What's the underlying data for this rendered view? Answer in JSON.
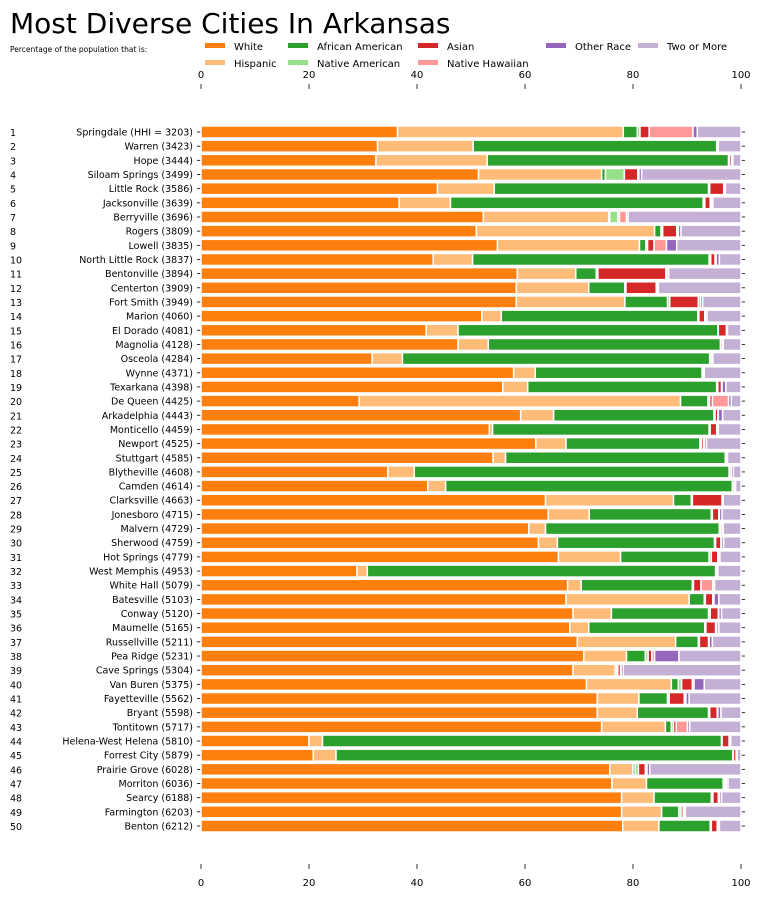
{
  "chart_data": {
    "type": "bar",
    "orientation": "horizontal",
    "stacked": true,
    "title": "Most Diverse Cities In Arkansas",
    "subtitle": "Percentage of the population that is:",
    "xlim": [
      0,
      100
    ],
    "xticks": [
      0,
      20,
      40,
      60,
      80,
      100
    ],
    "grid": false,
    "legend_placement": "top",
    "series": [
      {
        "name": "White",
        "color": "#ff7f0e"
      },
      {
        "name": "Hispanic",
        "color": "#ffbb78"
      },
      {
        "name": "African American",
        "color": "#2ca02c"
      },
      {
        "name": "Native American",
        "color": "#98df8a"
      },
      {
        "name": "Asian",
        "color": "#d62728"
      },
      {
        "name": "Native Hawaiian",
        "color": "#ff9896"
      },
      {
        "name": "Other Race",
        "color": "#9467bd"
      },
      {
        "name": "Two or More",
        "color": "#c5b0d5"
      }
    ],
    "rows": [
      {
        "rank": "1",
        "label": "Springdale (HHI = 3203)",
        "values": [
          36.4,
          41.8,
          2.6,
          0.5,
          1.7,
          8.1,
          0.8,
          8.1
        ]
      },
      {
        "rank": "2",
        "label": "Warren (3423)",
        "values": [
          32.7,
          17.7,
          45.1,
          0.1,
          0.1,
          0.0,
          0.1,
          4.2
        ]
      },
      {
        "rank": "3",
        "label": "Hope (3444)",
        "values": [
          32.4,
          20.6,
          44.7,
          0.2,
          0.4,
          0.0,
          0.2,
          1.5
        ]
      },
      {
        "rank": "4",
        "label": "Siloam Springs (3499)",
        "values": [
          51.4,
          22.8,
          0.7,
          3.5,
          2.5,
          0.2,
          0.5,
          18.4
        ]
      },
      {
        "rank": "5",
        "label": "Little Rock (3586)",
        "values": [
          43.8,
          10.5,
          39.7,
          0.2,
          2.6,
          0.1,
          0.2,
          2.9
        ]
      },
      {
        "rank": "6",
        "label": "Jacksonville (3639)",
        "values": [
          36.7,
          9.5,
          46.8,
          0.3,
          1.0,
          0.2,
          0.3,
          5.2
        ]
      },
      {
        "rank": "7",
        "label": "Berryville (3696)",
        "values": [
          52.3,
          23.2,
          0.2,
          1.5,
          0.3,
          1.3,
          0.3,
          20.9
        ]
      },
      {
        "rank": "8",
        "label": "Rogers (3809)",
        "values": [
          51.0,
          33.0,
          1.2,
          0.3,
          2.6,
          0.3,
          0.5,
          11.1
        ]
      },
      {
        "rank": "9",
        "label": "Lowell (3835)",
        "values": [
          54.9,
          26.3,
          1.2,
          0.3,
          1.2,
          2.3,
          1.9,
          11.9
        ]
      },
      {
        "rank": "10",
        "label": "North Little Rock (3837)",
        "values": [
          43.0,
          7.3,
          43.8,
          0.3,
          0.8,
          0.2,
          0.6,
          4.0
        ]
      },
      {
        "rank": "11",
        "label": "Bentonville (3894)",
        "values": [
          58.6,
          10.8,
          3.8,
          0.3,
          12.6,
          0.2,
          0.3,
          13.4
        ]
      },
      {
        "rank": "12",
        "label": "Centerton (3909)",
        "values": [
          58.4,
          13.4,
          6.7,
          0.2,
          5.6,
          0.2,
          0.2,
          15.3
        ]
      },
      {
        "rank": "13",
        "label": "Fort Smith (3949)",
        "values": [
          58.4,
          20.1,
          7.9,
          0.4,
          5.3,
          0.4,
          0.4,
          7.1
        ]
      },
      {
        "rank": "14",
        "label": "Marion (4060)",
        "values": [
          52.0,
          3.6,
          36.4,
          0.2,
          1.1,
          0.1,
          0.3,
          6.3
        ]
      },
      {
        "rank": "15",
        "label": "El Dorado (4081)",
        "values": [
          41.7,
          5.9,
          48.1,
          0.1,
          1.5,
          0.1,
          0.1,
          2.5
        ]
      },
      {
        "rank": "16",
        "label": "Magnolia (4128)",
        "values": [
          47.6,
          5.6,
          43.0,
          0.1,
          0.3,
          0.0,
          0.1,
          3.3
        ]
      },
      {
        "rank": "17",
        "label": "Osceola (4284)",
        "values": [
          31.7,
          5.6,
          56.9,
          0.1,
          0.3,
          0.0,
          0.2,
          5.2
        ]
      },
      {
        "rank": "18",
        "label": "Wynne (4371)",
        "values": [
          57.9,
          4.0,
          30.9,
          0.1,
          0.2,
          0.0,
          0.1,
          6.8
        ]
      },
      {
        "rank": "19",
        "label": "Texarkana (4398)",
        "values": [
          55.9,
          4.6,
          35.0,
          0.2,
          0.7,
          0.1,
          0.7,
          2.8
        ]
      },
      {
        "rank": "20",
        "label": "De Queen (4425)",
        "values": [
          29.3,
          59.5,
          5.1,
          0.3,
          0.5,
          3.0,
          0.5,
          1.8
        ]
      },
      {
        "rank": "21",
        "label": "Arkadelphia (4443)",
        "values": [
          59.2,
          6.1,
          29.7,
          0.2,
          0.5,
          0.1,
          0.8,
          3.4
        ]
      },
      {
        "rank": "22",
        "label": "Monticello (4459)",
        "values": [
          53.4,
          0.6,
          40.1,
          0.2,
          1.2,
          0.1,
          0.2,
          4.2
        ]
      },
      {
        "rank": "23",
        "label": "Newport (4525)",
        "values": [
          62.0,
          5.6,
          24.8,
          0.3,
          0.4,
          0.1,
          0.4,
          6.4
        ]
      },
      {
        "rank": "24",
        "label": "Stuttgart (4585)",
        "values": [
          54.1,
          2.3,
          40.7,
          0.1,
          0.2,
          0.0,
          0.1,
          2.5
        ]
      },
      {
        "rank": "25",
        "label": "Blytheville (4608)",
        "values": [
          34.6,
          4.9,
          58.3,
          0.1,
          0.3,
          0.0,
          0.4,
          1.4
        ]
      },
      {
        "rank": "26",
        "label": "Camden (4614)",
        "values": [
          42.0,
          3.3,
          53.1,
          0.1,
          0.3,
          0.0,
          0.2,
          1.0
        ]
      },
      {
        "rank": "27",
        "label": "Clarksville (4663)",
        "values": [
          63.8,
          23.7,
          3.3,
          0.2,
          5.5,
          0.1,
          0.1,
          3.3
        ]
      },
      {
        "rank": "28",
        "label": "Jonesboro (4715)",
        "values": [
          64.3,
          7.6,
          22.6,
          0.2,
          1.2,
          0.1,
          0.5,
          3.5
        ]
      },
      {
        "rank": "29",
        "label": "Malvern (4729)",
        "values": [
          60.7,
          3.1,
          32.2,
          0.2,
          0.3,
          0.0,
          0.2,
          3.3
        ]
      },
      {
        "rank": "30",
        "label": "Sherwood (4759)",
        "values": [
          62.5,
          3.5,
          29.1,
          0.2,
          1.0,
          0.1,
          0.4,
          3.2
        ]
      },
      {
        "rank": "31",
        "label": "Hot Springs (4779)",
        "values": [
          66.2,
          11.5,
          16.4,
          0.4,
          1.2,
          0.1,
          0.3,
          3.9
        ]
      },
      {
        "rank": "32",
        "label": "West Memphis (4953)",
        "values": [
          28.9,
          1.9,
          64.5,
          0.1,
          0.2,
          0.0,
          0.1,
          4.3
        ]
      },
      {
        "rank": "33",
        "label": "White Hall (5079)",
        "values": [
          67.9,
          2.5,
          20.6,
          0.2,
          1.4,
          2.2,
          0.3,
          4.9
        ]
      },
      {
        "rank": "34",
        "label": "Batesville (5103)",
        "values": [
          67.6,
          22.8,
          2.8,
          0.2,
          1.4,
          0.2,
          0.9,
          4.1
        ]
      },
      {
        "rank": "35",
        "label": "Conway (5120)",
        "values": [
          68.9,
          7.1,
          18.0,
          0.3,
          1.5,
          0.1,
          0.5,
          3.6
        ]
      },
      {
        "rank": "36",
        "label": "Maumelle (5165)",
        "values": [
          68.3,
          3.5,
          21.5,
          0.2,
          1.8,
          0.2,
          0.4,
          4.1
        ]
      },
      {
        "rank": "37",
        "label": "Russellville (5211)",
        "values": [
          69.7,
          18.2,
          4.2,
          0.2,
          1.7,
          0.1,
          0.6,
          5.3
        ]
      },
      {
        "rank": "38",
        "label": "Pea Ridge (5231)",
        "values": [
          70.9,
          7.9,
          3.5,
          0.5,
          0.7,
          0.5,
          4.5,
          11.5
        ]
      },
      {
        "rank": "39",
        "label": "Cave Springs (5304)",
        "values": [
          68.9,
          7.8,
          0.3,
          0.2,
          0.5,
          0.1,
          0.4,
          21.8
        ]
      },
      {
        "rank": "40",
        "label": "Van Buren (5375)",
        "values": [
          71.4,
          15.7,
          1.3,
          0.6,
          2.0,
          0.3,
          1.9,
          6.8
        ]
      },
      {
        "rank": "41",
        "label": "Fayetteville (5562)",
        "values": [
          73.4,
          7.7,
          5.3,
          0.3,
          2.8,
          0.3,
          0.6,
          9.6
        ]
      },
      {
        "rank": "42",
        "label": "Bryant (5598)",
        "values": [
          73.4,
          7.4,
          13.2,
          0.2,
          1.4,
          0.1,
          0.6,
          3.7
        ]
      },
      {
        "rank": "43",
        "label": "Tontitown (5717)",
        "values": [
          74.2,
          11.8,
          1.1,
          0.4,
          0.5,
          2.1,
          0.4,
          9.5
        ]
      },
      {
        "rank": "44",
        "label": "Helena-West Helena (5810)",
        "values": [
          20.0,
          2.5,
          73.9,
          0.1,
          1.3,
          0.0,
          0.3,
          1.9
        ]
      },
      {
        "rank": "45",
        "label": "Forrest City (5879)",
        "values": [
          20.8,
          4.2,
          73.5,
          0.1,
          0.5,
          0.0,
          0.2,
          0.7
        ]
      },
      {
        "rank": "46",
        "label": "Prairie Grove (6028)",
        "values": [
          75.7,
          4.3,
          0.4,
          0.6,
          1.3,
          0.3,
          0.5,
          16.9
        ]
      },
      {
        "rank": "47",
        "label": "Morriton (6036)",
        "values": [
          76.1,
          6.4,
          14.2,
          0.3,
          0.2,
          0.1,
          0.3,
          2.4
        ]
      },
      {
        "rank": "48",
        "label": "Searcy (6188)",
        "values": [
          77.9,
          6.0,
          10.6,
          0.3,
          1.0,
          0.2,
          0.4,
          3.6
        ]
      },
      {
        "rank": "49",
        "label": "Farmington (6203)",
        "values": [
          77.9,
          7.4,
          3.2,
          0.4,
          0.4,
          0.2,
          0.2,
          10.3
        ]
      },
      {
        "rank": "50",
        "label": "Benton (6212)",
        "values": [
          78.1,
          6.7,
          9.5,
          0.2,
          1.1,
          0.1,
          0.3,
          4.0
        ]
      }
    ]
  }
}
